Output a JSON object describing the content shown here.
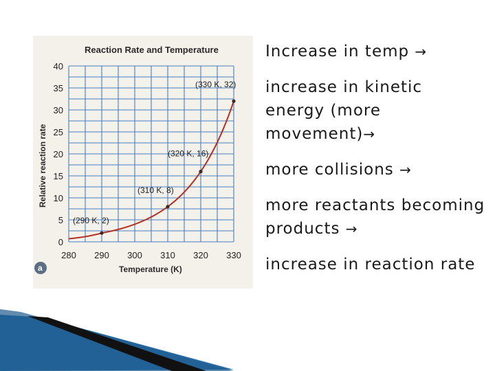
{
  "chart_data": {
    "type": "line",
    "title": "Reaction Rate and Temperature",
    "xlabel": "Temperature (K)",
    "ylabel": "Relative reaction rate",
    "x": [
      280,
      290,
      300,
      310,
      320,
      330
    ],
    "xlim": [
      280,
      330
    ],
    "ylim": [
      0,
      40
    ],
    "xticks": [
      280,
      290,
      300,
      310,
      320,
      330
    ],
    "yticks": [
      0,
      5,
      10,
      15,
      20,
      25,
      30,
      35,
      40
    ],
    "series": [
      {
        "name": "Relative reaction rate",
        "points": [
          [
            280,
            0.7
          ],
          [
            290,
            2
          ],
          [
            300,
            4
          ],
          [
            310,
            8
          ],
          [
            320,
            16
          ],
          [
            330,
            32
          ]
        ],
        "color": "#b5301f"
      }
    ],
    "labeled_points": [
      {
        "x": 290,
        "y": 2,
        "label": "(290 K, 2)"
      },
      {
        "x": 310,
        "y": 8,
        "label": "(310 K, 8)"
      },
      {
        "x": 320,
        "y": 16,
        "label": "(320 K, 16)"
      },
      {
        "x": 330,
        "y": 32,
        "label": "(330 K, 32)"
      }
    ],
    "grid": true,
    "panel_badge": "a"
  },
  "slide": {
    "bullets": [
      {
        "text": "Increase in temp ",
        "arrow": "→"
      },
      {
        "text": "increase in kinetic energy (more movement)",
        "arrow": "→"
      },
      {
        "text": "more collisions ",
        "arrow": "→"
      },
      {
        "text": "more reactants becoming products ",
        "arrow": "→"
      },
      {
        "text": "increase in reaction rate",
        "arrow": ""
      }
    ]
  },
  "colors": {
    "grid": "#4a7fc0",
    "curve": "#b5301f",
    "badge": "#5b6f84",
    "deco_dark": "#111111",
    "deco_blue": "#2a6fa8"
  }
}
